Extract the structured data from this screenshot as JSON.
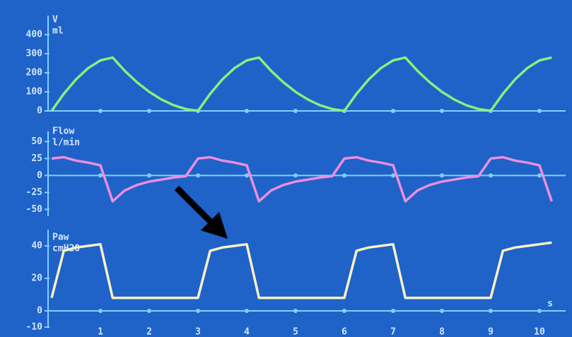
{
  "chart_data": [
    {
      "type": "line",
      "title": "V",
      "unit": "ml",
      "color": "#86f07e",
      "x": [
        0,
        0.25,
        0.5,
        0.75,
        1,
        1.25,
        1.5,
        1.75,
        2,
        2.25,
        2.5,
        2.75,
        3,
        3.25,
        3.5,
        3.75,
        4,
        4.25,
        4.5,
        4.75,
        5,
        5.25,
        5.5,
        5.75,
        6,
        6.25,
        6.5,
        6.75,
        7,
        7.25,
        7.5,
        7.75,
        8,
        8.25,
        8.5,
        8.75,
        9,
        9.25,
        9.5,
        9.75,
        10,
        10.25
      ],
      "values": [
        0,
        90,
        165,
        225,
        265,
        280,
        210,
        150,
        100,
        60,
        30,
        10,
        0,
        90,
        165,
        225,
        265,
        280,
        210,
        150,
        100,
        60,
        30,
        10,
        0,
        90,
        165,
        225,
        265,
        280,
        210,
        150,
        100,
        60,
        30,
        10,
        0,
        90,
        165,
        225,
        265,
        280
      ],
      "xlim": [
        0,
        10.5
      ],
      "ylim": [
        0,
        500
      ],
      "yticks": [
        0,
        100,
        200,
        300,
        400
      ]
    },
    {
      "type": "line",
      "title": "Flow",
      "unit": "l/min",
      "color": "#ec8ee0",
      "x": [
        0,
        0.25,
        0.5,
        0.75,
        1,
        1.25,
        1.5,
        1.75,
        2,
        2.25,
        2.5,
        2.75,
        3,
        3.25,
        3.5,
        3.75,
        4,
        4.25,
        4.5,
        4.75,
        5,
        5.25,
        5.5,
        5.75,
        6,
        6.25,
        6.5,
        6.75,
        7,
        7.25,
        7.5,
        7.75,
        8,
        8.25,
        8.5,
        8.75,
        9,
        9.25,
        9.5,
        9.75,
        10,
        10.25
      ],
      "values": [
        25,
        27,
        22,
        19,
        15,
        -38,
        -22,
        -14,
        -9,
        -6,
        -3,
        -1,
        25,
        27,
        22,
        19,
        15,
        -38,
        -22,
        -14,
        -9,
        -6,
        -3,
        -1,
        25,
        27,
        22,
        19,
        15,
        -38,
        -22,
        -14,
        -9,
        -6,
        -3,
        -1,
        25,
        27,
        22,
        19,
        15,
        -38
      ],
      "xlim": [
        0,
        10.5
      ],
      "ylim": [
        -60,
        65
      ],
      "yticks": [
        -50,
        -25,
        0,
        25,
        50
      ]
    },
    {
      "type": "line",
      "title": "Paw",
      "unit": "cmH2O",
      "color": "#fbf2c8",
      "x_label": "s",
      "x": [
        0,
        0.25,
        0.5,
        0.75,
        1,
        1.25,
        1.5,
        1.75,
        2,
        2.25,
        2.5,
        2.75,
        3,
        3.25,
        3.5,
        3.75,
        4,
        4.25,
        4.5,
        4.75,
        5,
        5.25,
        5.5,
        5.75,
        6,
        6.25,
        6.5,
        6.75,
        7,
        7.25,
        7.5,
        7.75,
        8,
        8.25,
        8.5,
        8.75,
        9,
        9.25,
        9.5,
        9.75,
        10,
        10.25
      ],
      "values": [
        8,
        37,
        39,
        40,
        41,
        8,
        8,
        8,
        8,
        8,
        8,
        8,
        8,
        37,
        39,
        40,
        41,
        8,
        8,
        8,
        8,
        8,
        8,
        8,
        8,
        37,
        39,
        40,
        41,
        8,
        8,
        8,
        8,
        8,
        8,
        8,
        8,
        37,
        39,
        40,
        41,
        42
      ],
      "xlim": [
        0,
        10.5
      ],
      "ylim": [
        -10,
        50
      ],
      "yticks": [
        -10,
        0,
        20,
        40
      ],
      "xticks": [
        1,
        2,
        3,
        4,
        5,
        6,
        7,
        8,
        9,
        10
      ]
    }
  ]
}
